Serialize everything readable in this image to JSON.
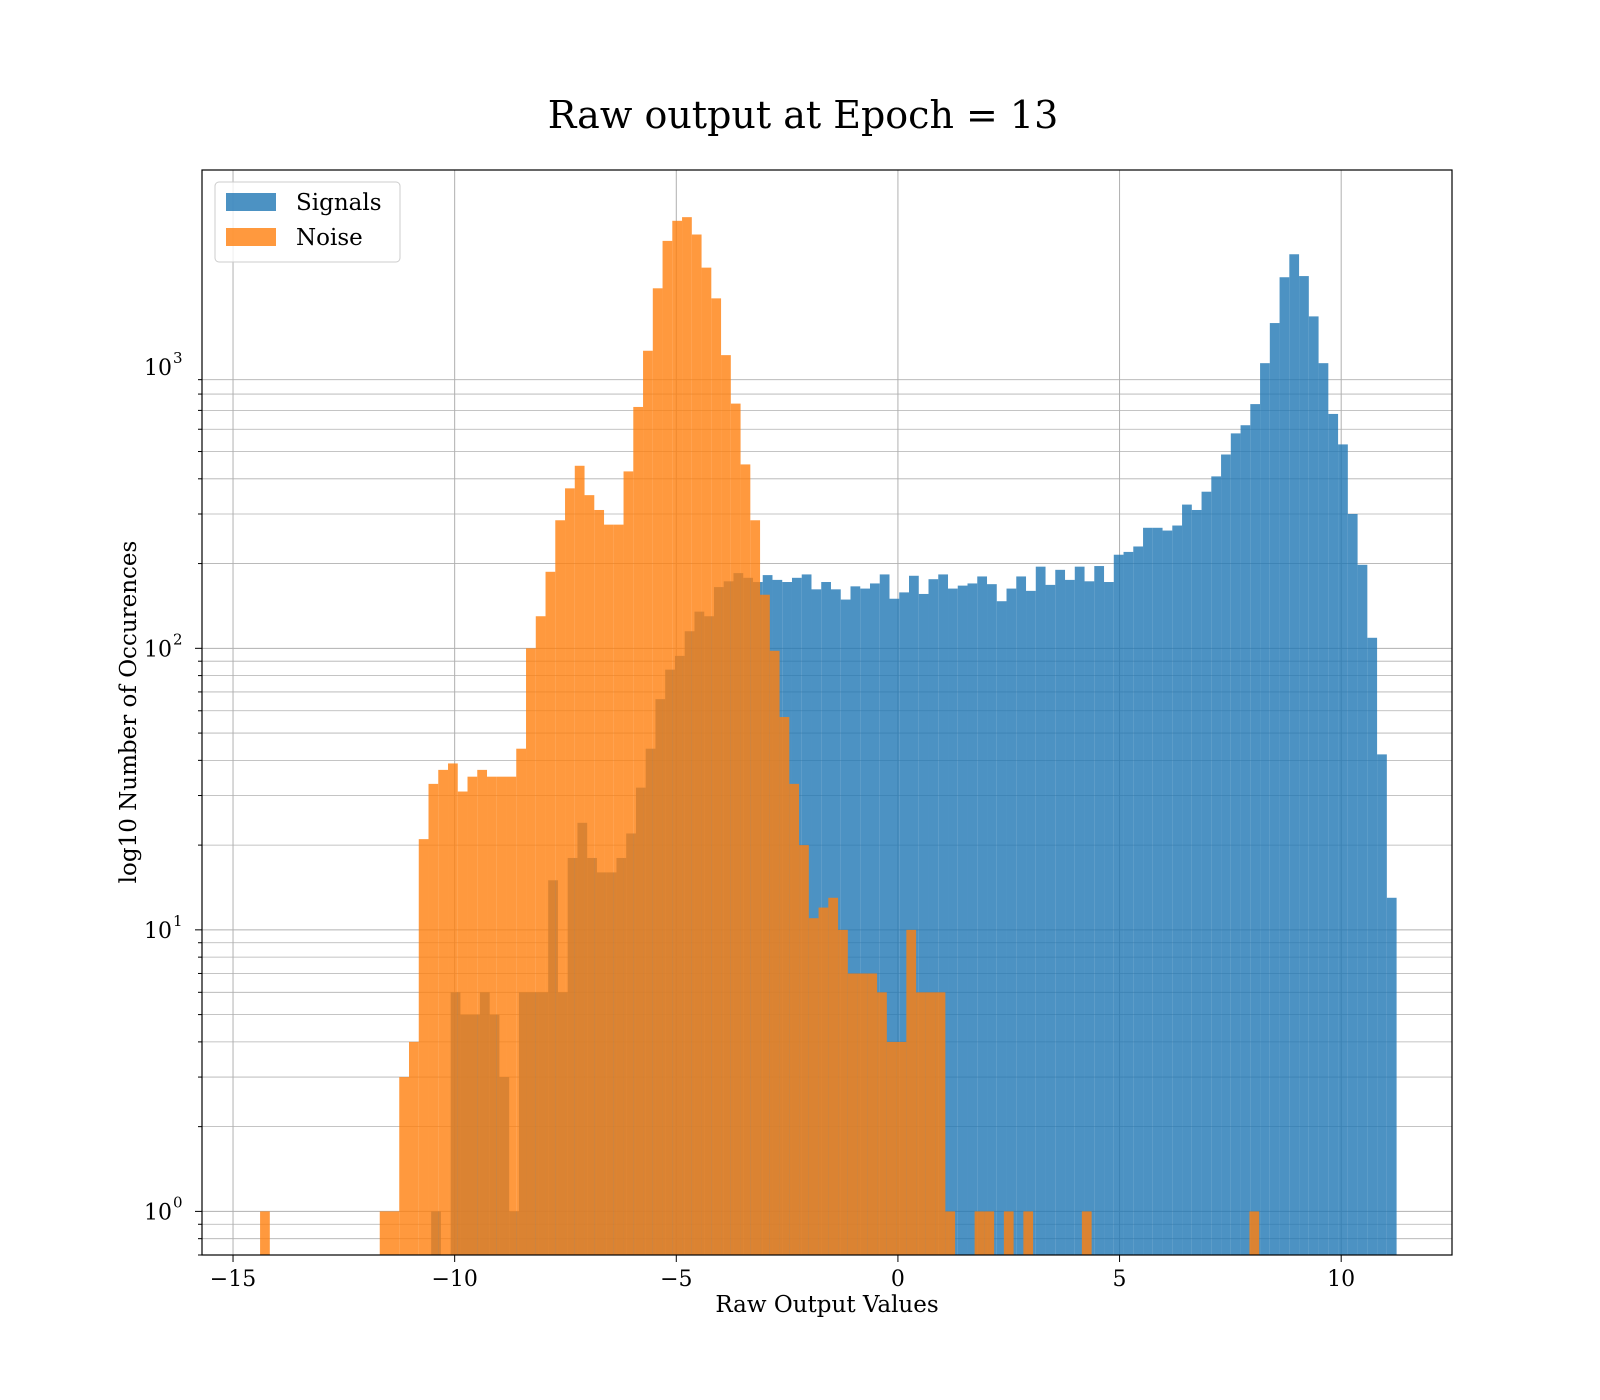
{
  "chart_data": {
    "type": "bar",
    "title": "Raw output at Epoch = 13",
    "xlabel": "Raw Output Values",
    "ylabel": "log10 Number of Occurences",
    "yscale": "log",
    "xlim": [
      -15.7,
      12.5
    ],
    "ylim": [
      0.7,
      5000
    ],
    "xticks": [
      {
        "value": -15,
        "label": "−15"
      },
      {
        "value": -10,
        "label": "−10"
      },
      {
        "value": -5,
        "label": "−5"
      },
      {
        "value": 0,
        "label": "0"
      },
      {
        "value": 5,
        "label": "5"
      },
      {
        "value": 10,
        "label": "10"
      }
    ],
    "yticks": [
      {
        "value": 1,
        "base": "10",
        "exp": "0"
      },
      {
        "value": 10,
        "base": "10",
        "exp": "1"
      },
      {
        "value": 100,
        "base": "10",
        "exp": "2"
      },
      {
        "value": 1000,
        "base": "10",
        "exp": "3"
      }
    ],
    "grid": true,
    "legend_position": "top-left",
    "series": [
      {
        "name": "Signals",
        "color": "#1f77b4",
        "opacity": 0.8,
        "bins": [
          [
            -10.53,
            -10.31,
            1
          ],
          [
            -10.09,
            -9.87,
            6
          ],
          [
            -9.87,
            -9.43,
            5
          ],
          [
            -9.43,
            -9.21,
            6
          ],
          [
            -9.21,
            -8.99,
            5
          ],
          [
            -8.99,
            -8.77,
            3
          ],
          [
            -8.77,
            -8.55,
            1
          ],
          [
            -8.55,
            -8.11,
            6
          ],
          [
            -8.11,
            -7.89,
            6
          ],
          [
            -7.89,
            -7.67,
            15
          ],
          [
            -7.67,
            -7.45,
            6
          ],
          [
            -7.45,
            -7.23,
            18
          ],
          [
            -7.23,
            -7.01,
            24
          ],
          [
            -7.01,
            -6.79,
            18
          ],
          [
            -6.79,
            -6.57,
            16
          ],
          [
            -6.57,
            -6.35,
            16
          ],
          [
            -6.35,
            -6.13,
            18
          ],
          [
            -6.13,
            -5.91,
            22
          ],
          [
            -5.91,
            -5.69,
            32
          ],
          [
            -5.69,
            -5.47,
            44
          ],
          [
            -5.47,
            -5.25,
            66
          ],
          [
            -5.25,
            -5.03,
            84
          ],
          [
            -5.03,
            -4.81,
            94
          ],
          [
            -4.81,
            -4.59,
            115
          ],
          [
            -4.59,
            -4.37,
            135
          ],
          [
            -4.37,
            -4.15,
            130
          ],
          [
            -4.15,
            -3.93,
            165
          ],
          [
            -3.93,
            -3.71,
            173
          ],
          [
            -3.71,
            -3.49,
            185
          ],
          [
            -3.49,
            -3.27,
            178
          ],
          [
            -3.27,
            -3.05,
            172
          ],
          [
            -3.05,
            -2.83,
            182
          ],
          [
            -2.83,
            -2.61,
            175
          ],
          [
            -2.61,
            -2.39,
            172
          ],
          [
            -2.39,
            -2.17,
            178
          ],
          [
            -2.17,
            -1.95,
            183
          ],
          [
            -1.95,
            -1.73,
            162
          ],
          [
            -1.73,
            -1.51,
            172
          ],
          [
            -1.51,
            -1.29,
            162
          ],
          [
            -1.29,
            -1.07,
            149
          ],
          [
            -1.07,
            -0.85,
            166
          ],
          [
            -0.85,
            -0.63,
            163
          ],
          [
            -0.63,
            -0.41,
            170
          ],
          [
            -0.41,
            -0.19,
            183
          ],
          [
            -0.19,
            0.03,
            150
          ],
          [
            0.03,
            0.25,
            158
          ],
          [
            0.25,
            0.47,
            181
          ],
          [
            0.47,
            0.69,
            156
          ],
          [
            0.69,
            0.91,
            176
          ],
          [
            0.91,
            1.13,
            183
          ],
          [
            1.13,
            1.35,
            163
          ],
          [
            1.35,
            1.57,
            167
          ],
          [
            1.57,
            1.79,
            170
          ],
          [
            1.79,
            2.01,
            180
          ],
          [
            2.01,
            2.23,
            169
          ],
          [
            2.23,
            2.45,
            147
          ],
          [
            2.45,
            2.67,
            163
          ],
          [
            2.67,
            2.89,
            180
          ],
          [
            2.89,
            3.11,
            160
          ],
          [
            3.11,
            3.33,
            195
          ],
          [
            3.33,
            3.55,
            168
          ],
          [
            3.55,
            3.77,
            190
          ],
          [
            3.77,
            3.99,
            175
          ],
          [
            3.99,
            4.21,
            195
          ],
          [
            4.21,
            4.43,
            173
          ],
          [
            4.43,
            4.65,
            196
          ],
          [
            4.65,
            4.87,
            172
          ],
          [
            4.87,
            5.09,
            215
          ],
          [
            5.09,
            5.31,
            220
          ],
          [
            5.31,
            5.53,
            230
          ],
          [
            5.53,
            5.75,
            268
          ],
          [
            5.75,
            5.97,
            268
          ],
          [
            5.97,
            6.19,
            262
          ],
          [
            6.19,
            6.41,
            273
          ],
          [
            6.41,
            6.63,
            324
          ],
          [
            6.63,
            6.85,
            310
          ],
          [
            6.85,
            7.07,
            360
          ],
          [
            7.07,
            7.29,
            408
          ],
          [
            7.29,
            7.51,
            488
          ],
          [
            7.51,
            7.73,
            580
          ],
          [
            7.73,
            7.95,
            620
          ],
          [
            7.95,
            8.17,
            737
          ],
          [
            8.17,
            8.39,
            1030
          ],
          [
            8.39,
            8.61,
            1430
          ],
          [
            8.61,
            8.83,
            2080
          ],
          [
            8.83,
            9.05,
            2510
          ],
          [
            9.05,
            9.27,
            2100
          ],
          [
            9.27,
            9.49,
            1510
          ],
          [
            9.49,
            9.71,
            1030
          ],
          [
            9.71,
            9.93,
            680
          ],
          [
            9.93,
            10.15,
            530
          ],
          [
            10.15,
            10.37,
            300
          ],
          [
            10.37,
            10.59,
            198
          ],
          [
            10.59,
            10.81,
            109
          ],
          [
            10.81,
            11.03,
            42
          ],
          [
            11.03,
            11.25,
            13
          ]
        ]
      },
      {
        "name": "Noise",
        "color": "#ff7f0e",
        "opacity": 0.8,
        "bins": [
          [
            -14.39,
            -14.17,
            1
          ],
          [
            -11.69,
            -11.47,
            1
          ],
          [
            -11.47,
            -11.25,
            1
          ],
          [
            -11.25,
            -11.03,
            3
          ],
          [
            -11.03,
            -10.81,
            4
          ],
          [
            -10.81,
            -10.59,
            21
          ],
          [
            -10.59,
            -10.37,
            33
          ],
          [
            -10.37,
            -10.15,
            37
          ],
          [
            -10.15,
            -9.93,
            39
          ],
          [
            -9.93,
            -9.71,
            31
          ],
          [
            -9.71,
            -9.49,
            35
          ],
          [
            -9.49,
            -9.27,
            37
          ],
          [
            -9.27,
            -9.05,
            35
          ],
          [
            -9.05,
            -8.83,
            35
          ],
          [
            -8.83,
            -8.61,
            35
          ],
          [
            -8.61,
            -8.39,
            44
          ],
          [
            -8.39,
            -8.17,
            100
          ],
          [
            -8.17,
            -7.95,
            130
          ],
          [
            -7.95,
            -7.73,
            187
          ],
          [
            -7.73,
            -7.51,
            285
          ],
          [
            -7.51,
            -7.29,
            370
          ],
          [
            -7.29,
            -7.07,
            445
          ],
          [
            -7.07,
            -6.85,
            350
          ],
          [
            -6.85,
            -6.63,
            310
          ],
          [
            -6.63,
            -6.41,
            275
          ],
          [
            -6.41,
            -6.19,
            275
          ],
          [
            -6.19,
            -5.97,
            425
          ],
          [
            -5.97,
            -5.75,
            720
          ],
          [
            -5.75,
            -5.53,
            1140
          ],
          [
            -5.53,
            -5.31,
            1900
          ],
          [
            -5.31,
            -5.09,
            2800
          ],
          [
            -5.09,
            -4.87,
            3300
          ],
          [
            -4.87,
            -4.65,
            3400
          ],
          [
            -4.65,
            -4.43,
            2950
          ],
          [
            -4.43,
            -4.21,
            2250
          ],
          [
            -4.21,
            -3.99,
            1750
          ],
          [
            -3.99,
            -3.77,
            1100
          ],
          [
            -3.77,
            -3.55,
            740
          ],
          [
            -3.55,
            -3.33,
            450
          ],
          [
            -3.33,
            -3.11,
            285
          ],
          [
            -3.11,
            -2.89,
            155
          ],
          [
            -2.89,
            -2.67,
            98
          ],
          [
            -2.67,
            -2.45,
            57
          ],
          [
            -2.45,
            -2.23,
            33
          ],
          [
            -2.23,
            -2.01,
            20
          ],
          [
            -2.01,
            -1.79,
            11
          ],
          [
            -1.79,
            -1.57,
            12
          ],
          [
            -1.57,
            -1.35,
            13
          ],
          [
            -1.35,
            -1.13,
            10
          ],
          [
            -1.13,
            -0.91,
            7
          ],
          [
            -0.91,
            -0.69,
            7
          ],
          [
            -0.69,
            -0.47,
            7
          ],
          [
            -0.47,
            -0.25,
            6
          ],
          [
            -0.25,
            -0.03,
            4
          ],
          [
            -0.03,
            0.19,
            4
          ],
          [
            0.19,
            0.41,
            10
          ],
          [
            0.41,
            0.63,
            6
          ],
          [
            0.63,
            0.85,
            6
          ],
          [
            0.85,
            1.07,
            6
          ],
          [
            1.07,
            1.29,
            1
          ],
          [
            1.73,
            1.95,
            1
          ],
          [
            1.95,
            2.17,
            1
          ],
          [
            2.39,
            2.61,
            1
          ],
          [
            2.83,
            3.05,
            1
          ],
          [
            4.15,
            4.37,
            1
          ],
          [
            7.93,
            8.15,
            1
          ]
        ]
      }
    ]
  }
}
